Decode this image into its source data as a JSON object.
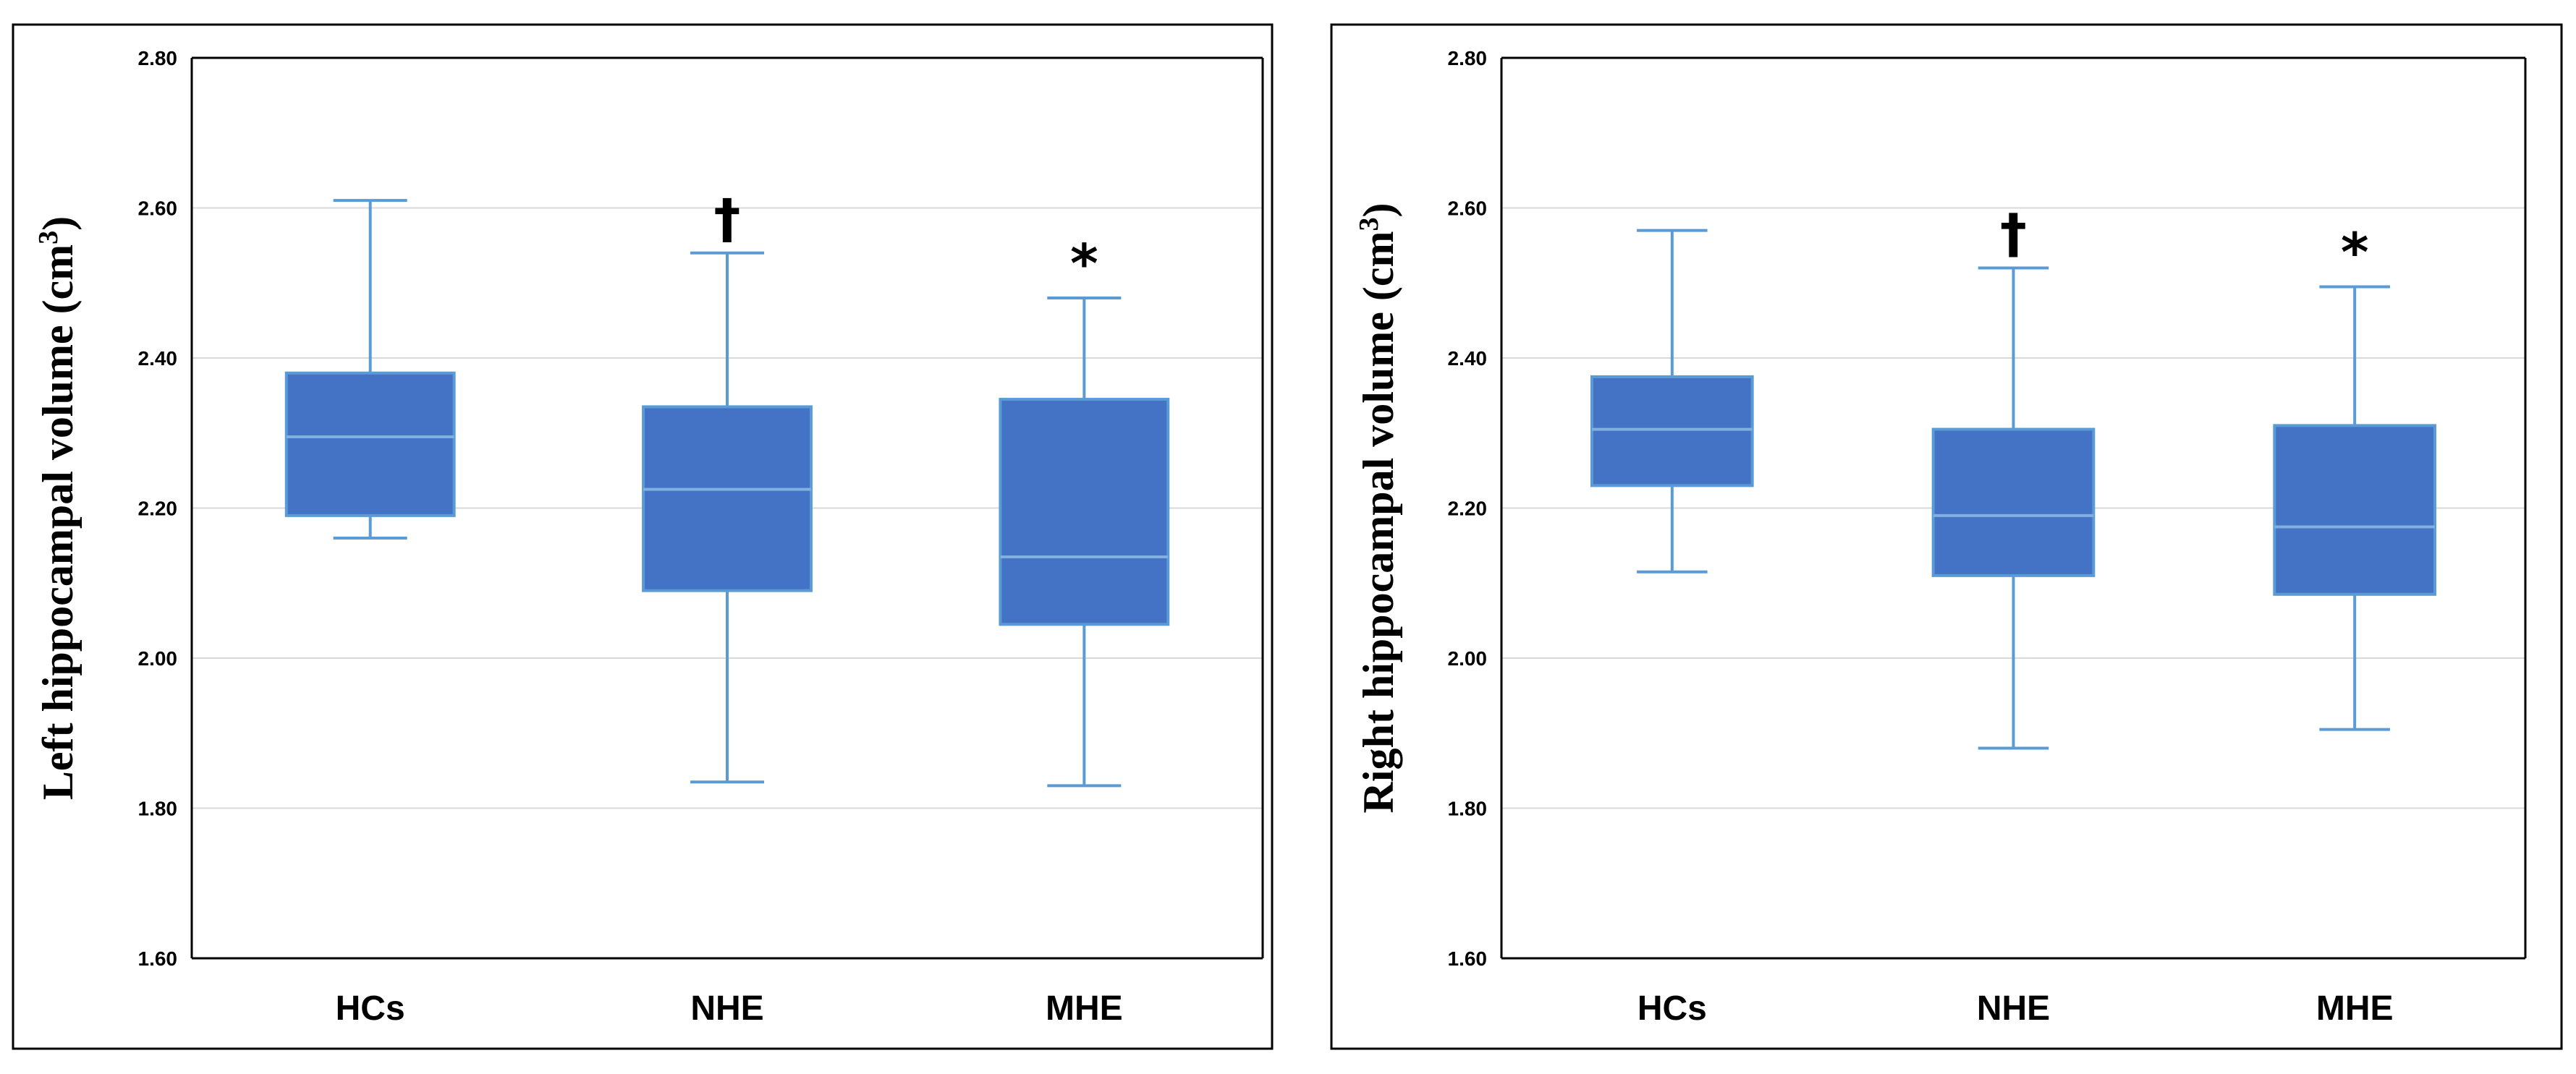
{
  "chart_data": [
    {
      "type": "box",
      "ylabel": "Left hippocampal volume (cm",
      "ylabel_sup": "3",
      "ylabel_close": ")",
      "ylim": [
        1.6,
        2.8
      ],
      "yticks": [
        1.6,
        1.8,
        2.0,
        2.2,
        2.4,
        2.6,
        2.8
      ],
      "ytick_labels": [
        "1.60",
        "1.80",
        "2.00",
        "2.20",
        "2.40",
        "2.60",
        "2.80"
      ],
      "grid": true,
      "categories": [
        "HCs",
        "NHE",
        "MHE"
      ],
      "boxes": [
        {
          "min": 2.16,
          "q1": 2.19,
          "median": 2.295,
          "q3": 2.38,
          "max": 2.61,
          "marker": ""
        },
        {
          "min": 1.835,
          "q1": 2.09,
          "median": 2.225,
          "q3": 2.335,
          "max": 2.54,
          "marker": "†"
        },
        {
          "min": 1.83,
          "q1": 2.045,
          "median": 2.135,
          "q3": 2.345,
          "max": 2.48,
          "marker": "*"
        }
      ]
    },
    {
      "type": "box",
      "ylabel": "Right hippocampal volume (cm",
      "ylabel_sup": "3",
      "ylabel_close": ")",
      "ylim": [
        1.6,
        2.8
      ],
      "yticks": [
        1.6,
        1.8,
        2.0,
        2.2,
        2.4,
        2.6,
        2.8
      ],
      "ytick_labels": [
        "1.60",
        "1.80",
        "2.00",
        "2.20",
        "2.40",
        "2.60",
        "2.80"
      ],
      "grid": true,
      "categories": [
        "HCs",
        "NHE",
        "MHE"
      ],
      "boxes": [
        {
          "min": 2.115,
          "q1": 2.23,
          "median": 2.305,
          "q3": 2.375,
          "max": 2.57,
          "marker": ""
        },
        {
          "min": 1.88,
          "q1": 2.11,
          "median": 2.19,
          "q3": 2.305,
          "max": 2.52,
          "marker": "†"
        },
        {
          "min": 1.905,
          "q1": 2.085,
          "median": 2.175,
          "q3": 2.31,
          "max": 2.495,
          "marker": "*"
        }
      ]
    }
  ],
  "colors": {
    "box_fill": "#4472C4",
    "box_edge": "#5B9BD5",
    "median": "#7FB0E0",
    "whisker": "#5B9BD5",
    "grid": "#D9D9D9",
    "axis": "#000000",
    "frame": "#000000"
  }
}
